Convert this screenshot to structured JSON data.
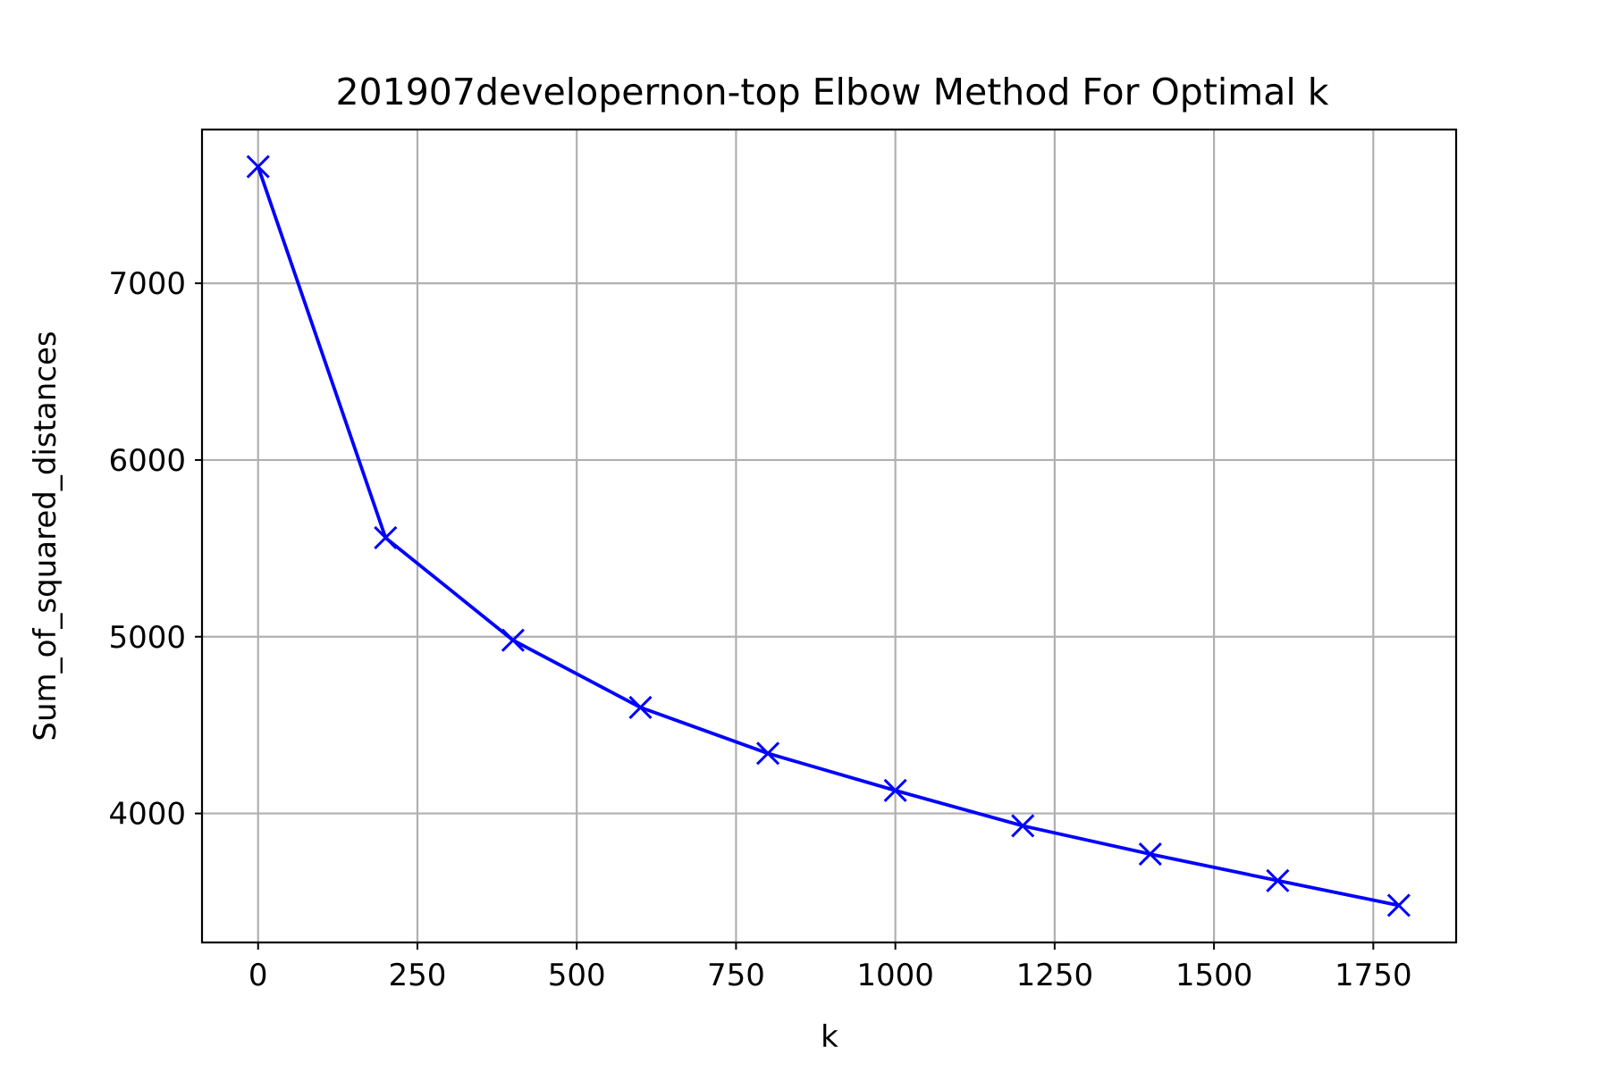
{
  "chart_data": {
    "type": "line",
    "title": "201907developernon-top Elbow Method For Optimal k",
    "xlabel": "k",
    "ylabel": "Sum_of_squared_distances",
    "xlim": [
      -88,
      1880
    ],
    "ylim": [
      3270,
      7870
    ],
    "xticks": [
      0,
      250,
      500,
      750,
      1000,
      1250,
      1500,
      1750
    ],
    "yticks": [
      4000,
      5000,
      6000,
      7000
    ],
    "grid": true,
    "marker": "x",
    "color": "#0000ff",
    "series": [
      {
        "x": [
          0,
          200,
          400,
          600,
          800,
          1000,
          1200,
          1400,
          1600,
          1790
        ],
        "y": [
          7660,
          5560,
          4980,
          4600,
          4340,
          4130,
          3930,
          3770,
          3620,
          3480
        ]
      }
    ]
  }
}
